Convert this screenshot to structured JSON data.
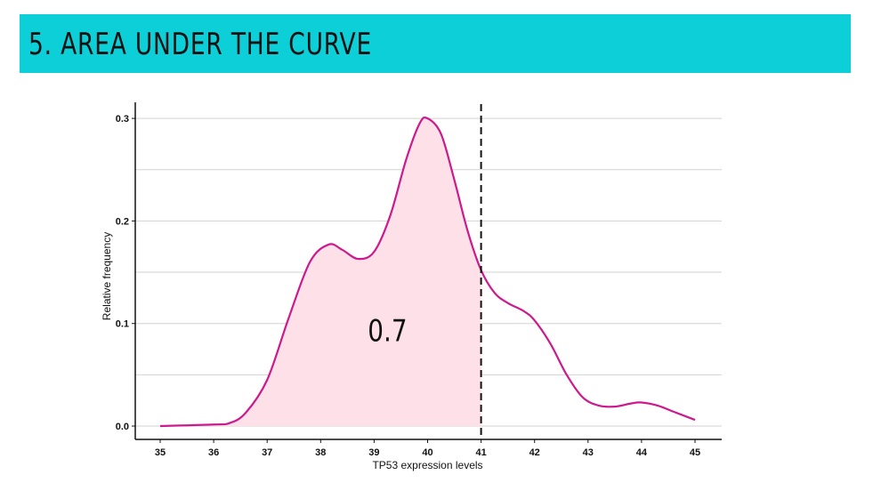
{
  "slide": {
    "title": "5. AREA UNDER THE CURVE",
    "title_bar_color": "#0ccfd8"
  },
  "chart_data": {
    "type": "area",
    "xlabel": "TP53 expression levels",
    "ylabel": "Relative frequency",
    "xlim": [
      35,
      45
    ],
    "ylim": [
      0,
      0.3
    ],
    "x_ticks": [
      35,
      36,
      37,
      38,
      39,
      40,
      41,
      42,
      43,
      44,
      45
    ],
    "y_ticks": [
      0.0,
      0.1,
      0.2,
      0.3
    ],
    "y_tick_labels": [
      "0.0",
      "0.1",
      "0.2",
      "0.3"
    ],
    "grid": "horizontal",
    "series": [
      {
        "x": [
          35,
          36,
          36.3,
          36.6,
          37,
          37.4,
          37.8,
          38.15,
          38.4,
          38.7,
          39,
          39.3,
          39.6,
          39.85,
          40,
          40.25,
          40.5,
          40.75,
          41,
          41.25,
          41.5,
          41.8,
          42,
          42.3,
          42.6,
          42.9,
          43.2,
          43.5,
          43.8,
          44,
          44.3,
          44.6,
          45
        ],
        "y": [
          0.0,
          0.0015,
          0.003,
          0.013,
          0.045,
          0.105,
          0.16,
          0.177,
          0.172,
          0.163,
          0.17,
          0.205,
          0.26,
          0.295,
          0.3,
          0.285,
          0.24,
          0.19,
          0.152,
          0.13,
          0.12,
          0.112,
          0.103,
          0.08,
          0.05,
          0.028,
          0.02,
          0.019,
          0.022,
          0.023,
          0.02,
          0.014,
          0.006
        ],
        "line_color": "#cc1a8e",
        "fill_color": "#fde0e8"
      }
    ],
    "shaded_range": [
      35,
      41
    ],
    "cutoff": {
      "x": 41,
      "style": "dashed"
    },
    "annotation": {
      "text": "0.7",
      "x": 39.25,
      "y": 0.083
    }
  }
}
